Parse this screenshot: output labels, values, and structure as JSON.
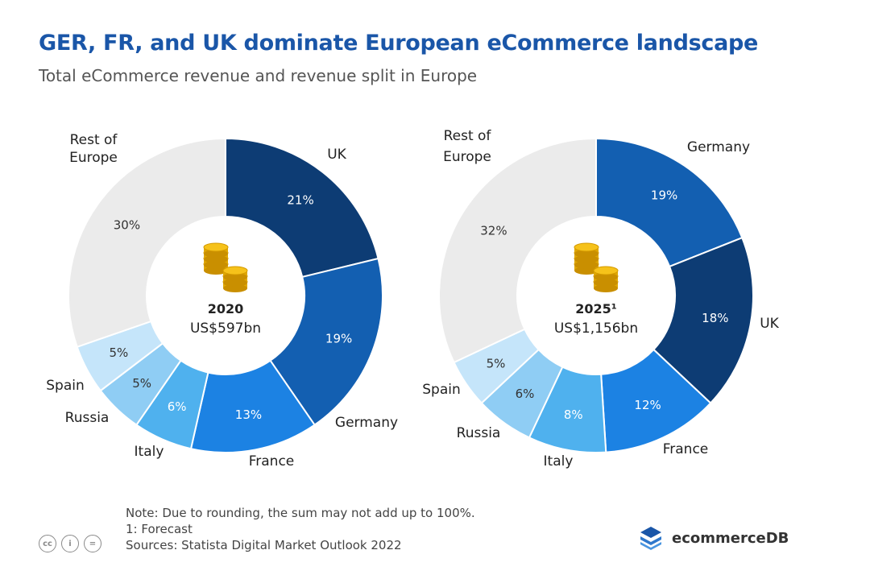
{
  "title": "GER, FR, and UK dominate European eCommerce landscape",
  "subtitle": "Total eCommerce revenue and revenue split in Europe",
  "chart_data": [
    {
      "type": "pie",
      "center_year": "2020",
      "center_value": "US$597bn",
      "slices": [
        {
          "name": "UK",
          "value": 21,
          "label": "21%",
          "color": "#0d3c74"
        },
        {
          "name": "Germany",
          "value": 19,
          "label": "19%",
          "color": "#135fb1"
        },
        {
          "name": "France",
          "value": 13,
          "label": "13%",
          "color": "#1c82e3"
        },
        {
          "name": "Italy",
          "value": 6,
          "label": "6%",
          "color": "#4fb1ee"
        },
        {
          "name": "Russia",
          "value": 5,
          "label": "5%",
          "color": "#8fcdf4"
        },
        {
          "name": "Spain",
          "value": 5,
          "label": "5%",
          "color": "#c5e5fa"
        },
        {
          "name": "Rest of Europe",
          "value": 30,
          "label": "30%",
          "color": "#ebebeb"
        }
      ]
    },
    {
      "type": "pie",
      "center_year": "2025¹",
      "center_value": "US$1,156bn",
      "slices": [
        {
          "name": "Germany",
          "value": 19,
          "label": "19%",
          "color": "#135fb1"
        },
        {
          "name": "UK",
          "value": 18,
          "label": "18%",
          "color": "#0d3c74"
        },
        {
          "name": "France",
          "value": 12,
          "label": "12%",
          "color": "#1c82e3"
        },
        {
          "name": "Italy",
          "value": 8,
          "label": "8%",
          "color": "#4fb1ee"
        },
        {
          "name": "Russia",
          "value": 6,
          "label": "6%",
          "color": "#8fcdf4"
        },
        {
          "name": "Spain",
          "value": 5,
          "label": "5%",
          "color": "#c5e5fa"
        },
        {
          "name": "Rest of Europe",
          "value": 32,
          "label": "32%",
          "color": "#ebebeb"
        }
      ]
    }
  ],
  "notes": {
    "rounding": "Note: Due to rounding, the sum may not add up to 100%.",
    "forecast": "1: Forecast",
    "sources": "Sources: Statista Digital Market Outlook 2022"
  },
  "license_icons": [
    "cc-icon",
    "attribution-icon",
    "no-derivatives-icon"
  ],
  "brand": {
    "name": "ecommerceDB",
    "color": "#1a56a8"
  }
}
